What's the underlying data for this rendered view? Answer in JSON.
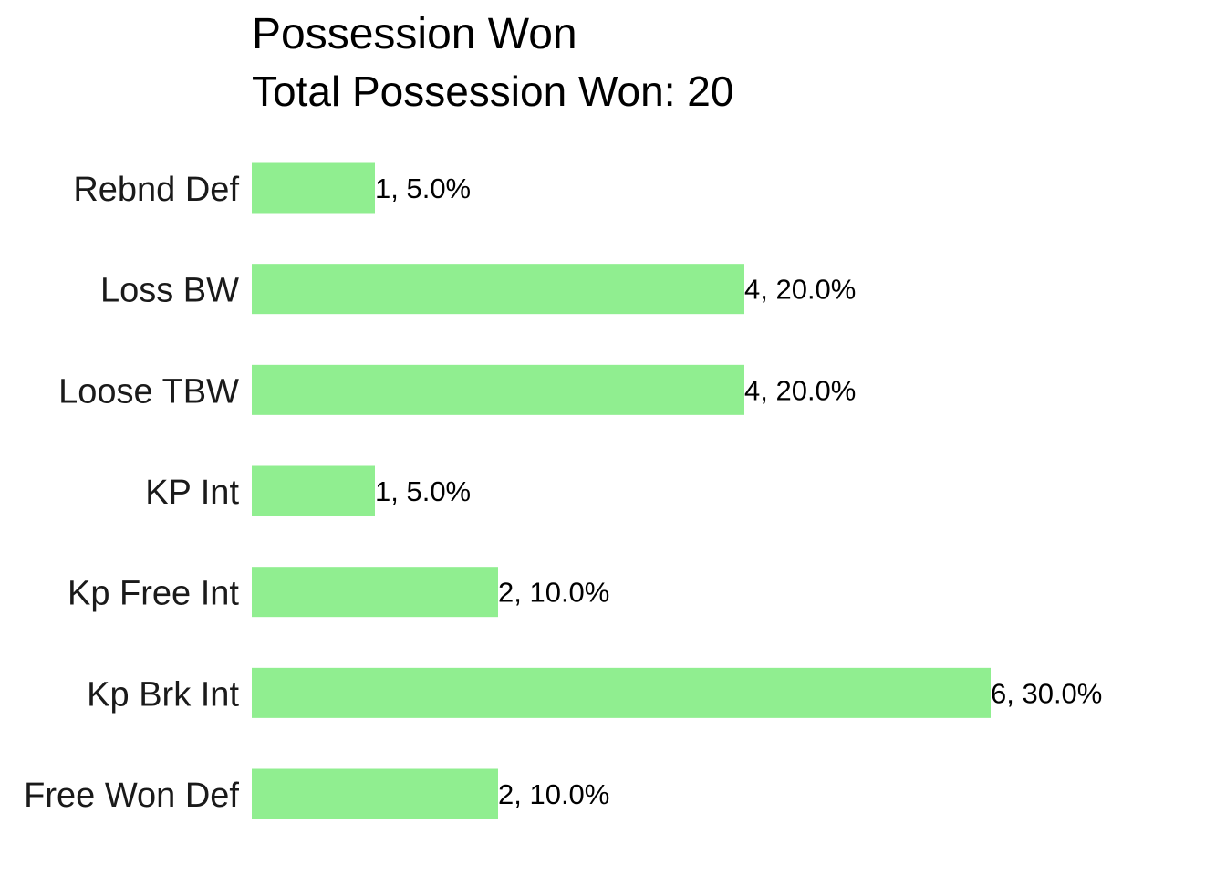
{
  "chart_data": {
    "type": "bar",
    "orientation": "horizontal",
    "title": "Possession Won",
    "subtitle": "Total Possession Won: 20",
    "categories": [
      "Rebnd Def",
      "Loss BW",
      "Loose TBW",
      "KP Int",
      "Kp Free Int",
      "Kp Brk Int",
      "Free Won Def"
    ],
    "values": [
      1,
      4,
      4,
      1,
      2,
      6,
      2
    ],
    "data_labels": [
      "1, 5.0%",
      "4, 20.0%",
      "4, 20.0%",
      "1, 5.0%",
      "2, 10.0%",
      "6, 30.0%",
      "2, 10.0%"
    ],
    "xlim": [
      0,
      6
    ],
    "grid": false,
    "legend": "none",
    "bar_color": "#90ee90"
  }
}
